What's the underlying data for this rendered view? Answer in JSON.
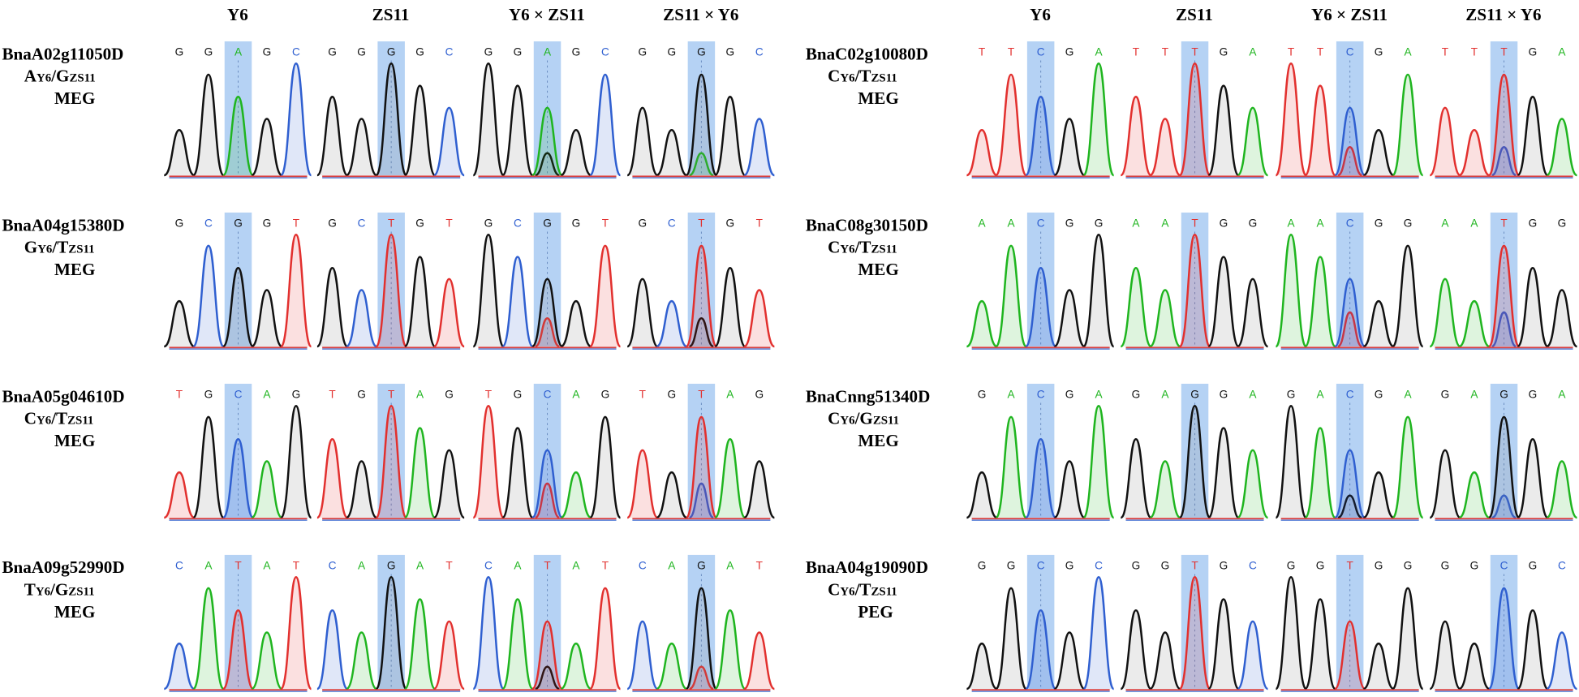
{
  "columns": [
    "Y6",
    "ZS11",
    "Y6 × ZS11",
    "ZS11 × Y6"
  ],
  "panels": [
    {
      "gene": "BnaA02g11050D",
      "allele": {
        "a": "A",
        "a_sub": "Y6",
        "b": "/G",
        "b_sub": "ZS11"
      },
      "class": "MEG",
      "traces": [
        [
          "G",
          "G",
          "A",
          "G",
          "C"
        ],
        [
          "G",
          "G",
          "G",
          "G",
          "C"
        ],
        [
          "G",
          "G",
          "A",
          "G",
          "C"
        ],
        [
          "G",
          "G",
          "G",
          "G",
          "C"
        ]
      ]
    },
    {
      "gene": "BnaA04g15380D",
      "allele": {
        "a": "G",
        "a_sub": "Y6",
        "b": "/T",
        "b_sub": "ZS11"
      },
      "class": "MEG",
      "traces": [
        [
          "G",
          "C",
          "G",
          "G",
          "T"
        ],
        [
          "G",
          "C",
          "T",
          "G",
          "T"
        ],
        [
          "G",
          "C",
          "G",
          "G",
          "T"
        ],
        [
          "G",
          "C",
          "T",
          "G",
          "T"
        ]
      ]
    },
    {
      "gene": "BnaA05g04610D",
      "allele": {
        "a": "C",
        "a_sub": "Y6",
        "b": "/T",
        "b_sub": "ZS11"
      },
      "class": "MEG",
      "traces": [
        [
          "T",
          "G",
          "C",
          "A",
          "G"
        ],
        [
          "T",
          "G",
          "T",
          "A",
          "G"
        ],
        [
          "T",
          "G",
          "C",
          "A",
          "G"
        ],
        [
          "T",
          "G",
          "T",
          "A",
          "G"
        ]
      ]
    },
    {
      "gene": "BnaA09g52990D",
      "allele": {
        "a": "T",
        "a_sub": "Y6",
        "b": "/G",
        "b_sub": "ZS11"
      },
      "class": "MEG",
      "traces": [
        [
          "C",
          "A",
          "T",
          "A",
          "T"
        ],
        [
          "C",
          "A",
          "G",
          "A",
          "T"
        ],
        [
          "C",
          "A",
          "T",
          "A",
          "T"
        ],
        [
          "C",
          "A",
          "G",
          "A",
          "T"
        ]
      ]
    },
    {
      "gene": "BnaC02g10080D",
      "allele": {
        "a": "C",
        "a_sub": "Y6",
        "b": "/T",
        "b_sub": "ZS11"
      },
      "class": "MEG",
      "traces": [
        [
          "T",
          "T",
          "C",
          "G",
          "A"
        ],
        [
          "T",
          "T",
          "T",
          "G",
          "A"
        ],
        [
          "T",
          "T",
          "C",
          "G",
          "A"
        ],
        [
          "T",
          "T",
          "T",
          "G",
          "A"
        ]
      ]
    },
    {
      "gene": "BnaC08g30150D",
      "allele": {
        "a": "C",
        "a_sub": "Y6",
        "b": "/T",
        "b_sub": "ZS11"
      },
      "class": "MEG",
      "traces": [
        [
          "A",
          "A",
          "C",
          "G",
          "G"
        ],
        [
          "A",
          "A",
          "T",
          "G",
          "G"
        ],
        [
          "A",
          "A",
          "C",
          "G",
          "G"
        ],
        [
          "A",
          "A",
          "T",
          "G",
          "G"
        ]
      ]
    },
    {
      "gene": "BnaCnng51340D",
      "allele": {
        "a": "C",
        "a_sub": "Y6",
        "b": "/G",
        "b_sub": "ZS11"
      },
      "class": "MEG",
      "traces": [
        [
          "G",
          "A",
          "C",
          "G",
          "A"
        ],
        [
          "G",
          "A",
          "G",
          "G",
          "A"
        ],
        [
          "G",
          "A",
          "C",
          "G",
          "A"
        ],
        [
          "G",
          "A",
          "G",
          "G",
          "A"
        ]
      ]
    },
    {
      "gene": "BnaA04g19090D",
      "allele": {
        "a": "C",
        "a_sub": "Y6",
        "b": "/T",
        "b_sub": "ZS11"
      },
      "class": "PEG",
      "traces": [
        [
          "G",
          "G",
          "C",
          "G",
          "C"
        ],
        [
          "G",
          "G",
          "T",
          "G",
          "C"
        ],
        [
          "G",
          "G",
          "T",
          "G",
          "G"
        ],
        [
          "G",
          "G",
          "C",
          "G",
          "C"
        ]
      ]
    }
  ]
}
